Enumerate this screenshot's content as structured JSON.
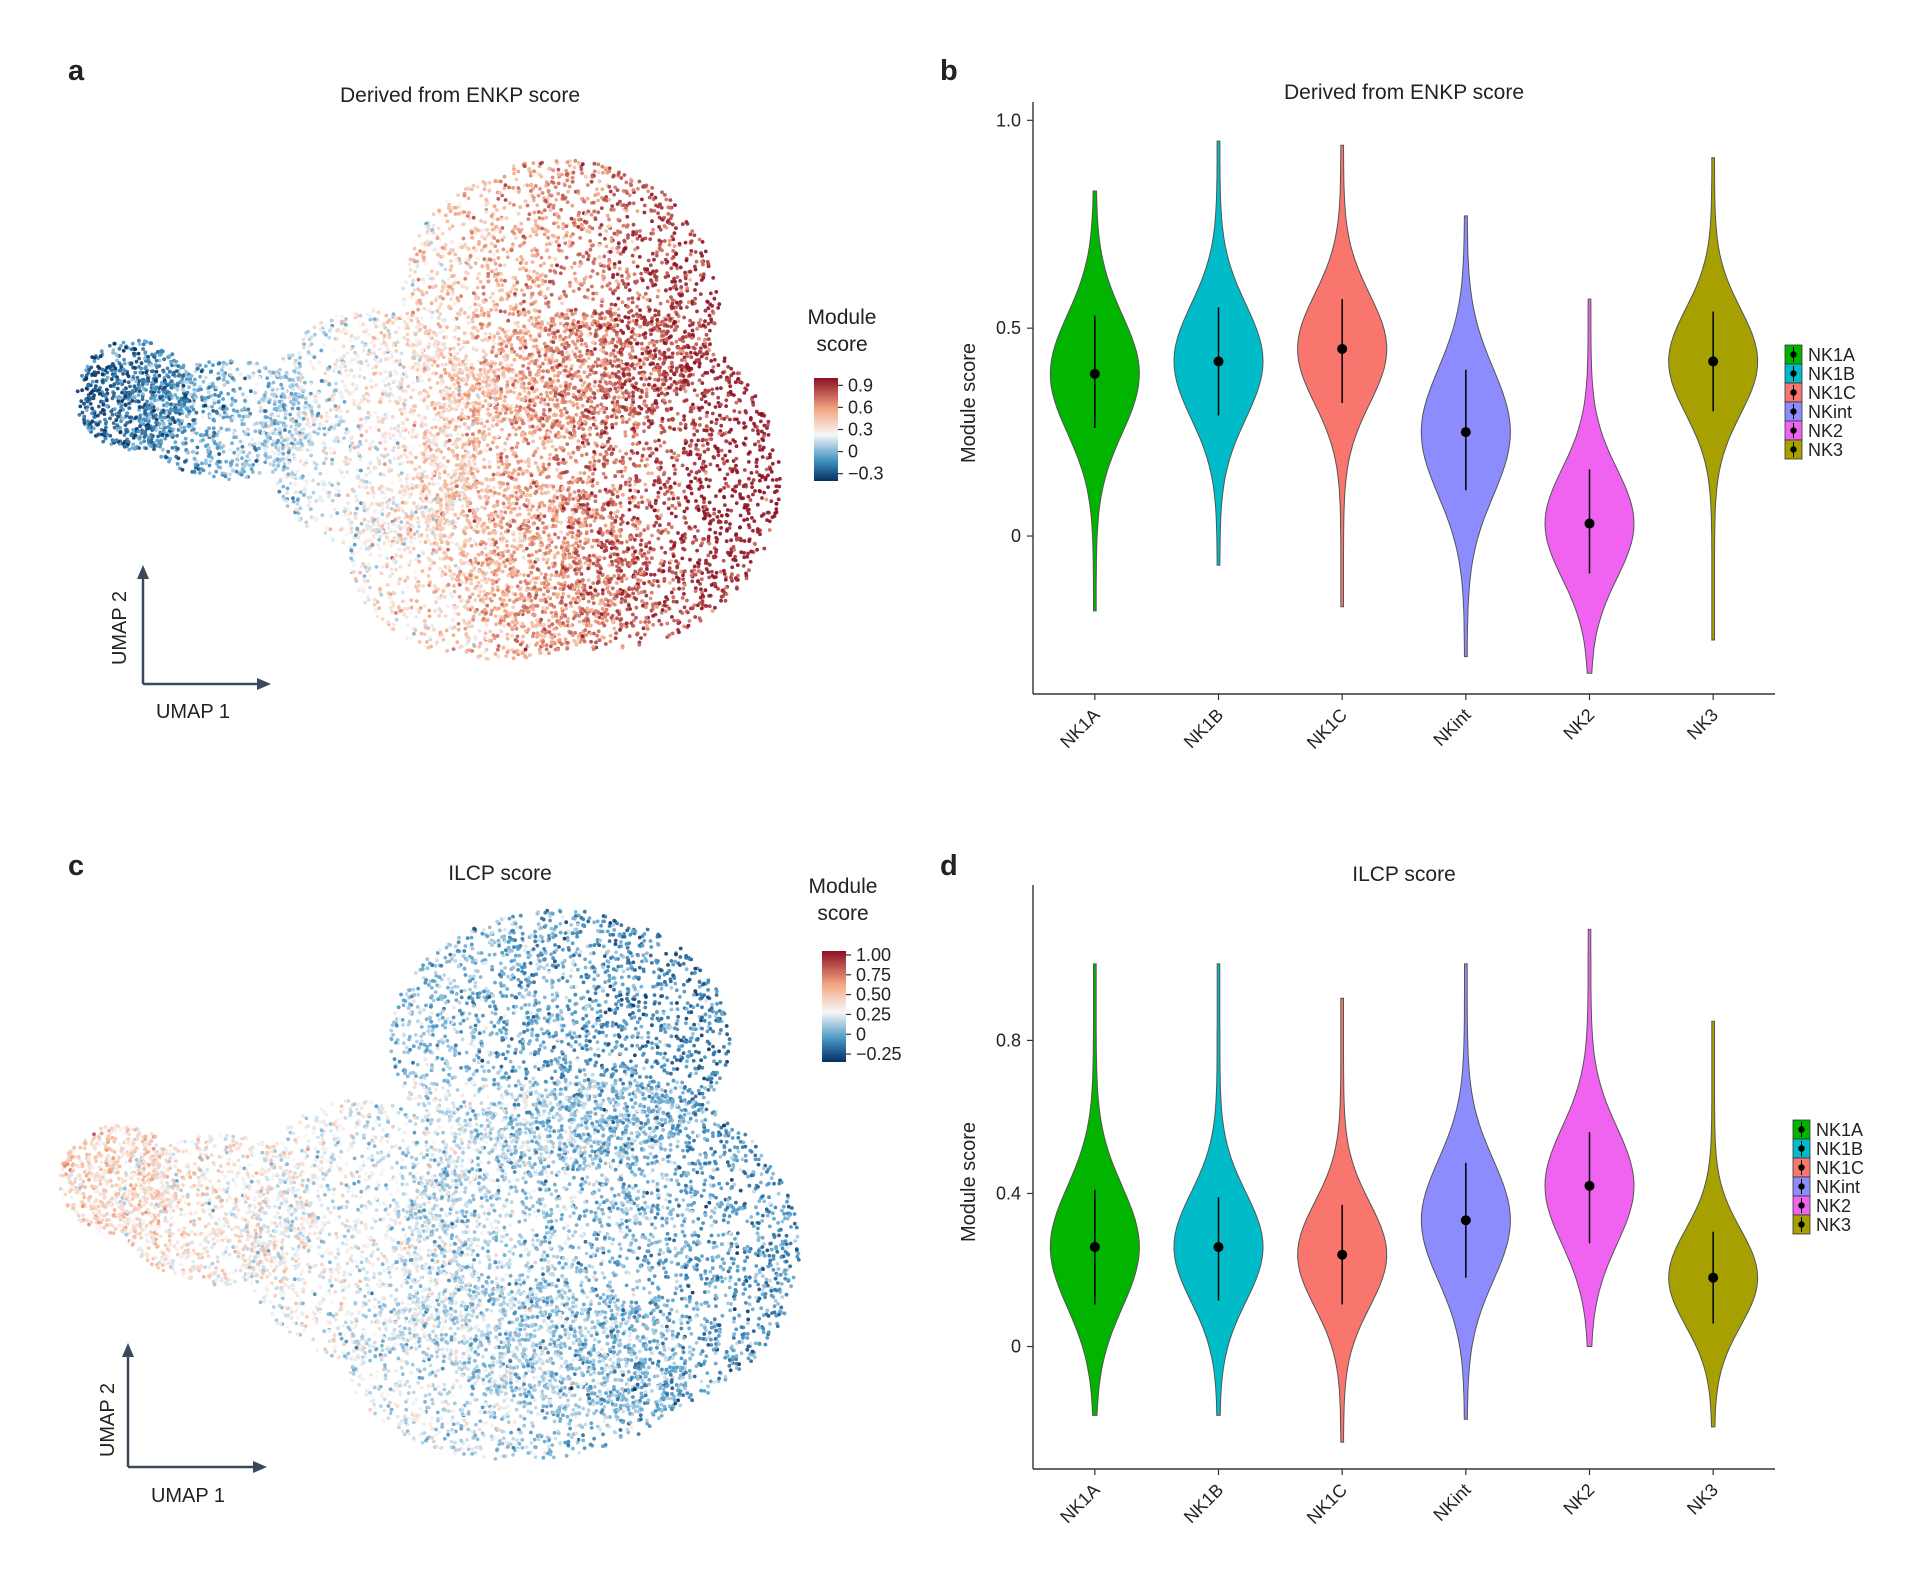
{
  "panels": {
    "a": {
      "letter": "a",
      "title": "Derived from ENKP score",
      "umap_x": "UMAP 1",
      "umap_y": "UMAP 2"
    },
    "b": {
      "letter": "b"
    },
    "c": {
      "letter": "c",
      "title": "ILCP score",
      "umap_x": "UMAP 1",
      "umap_y": "UMAP 2"
    },
    "d": {
      "letter": "d"
    }
  },
  "colorbar_a": {
    "title_line1": "Module",
    "title_line2": "score",
    "ticks": [
      {
        "value": 0.9,
        "label": "0.9"
      },
      {
        "value": 0.6,
        "label": "0.6"
      },
      {
        "value": 0.3,
        "label": "0.3"
      },
      {
        "value": 0,
        "label": "0"
      },
      {
        "value": -0.3,
        "label": "−0.3"
      }
    ],
    "range": [
      -0.4,
      1.0
    ]
  },
  "colorbar_c": {
    "title_line1": "Module",
    "title_line2": "score",
    "ticks": [
      {
        "value": 1.0,
        "label": "1.00"
      },
      {
        "value": 0.75,
        "label": "0.75"
      },
      {
        "value": 0.5,
        "label": "0.50"
      },
      {
        "value": 0.25,
        "label": "0.25"
      },
      {
        "value": 0,
        "label": "0"
      },
      {
        "value": -0.25,
        "label": "−0.25"
      }
    ],
    "range": [
      -0.35,
      1.05
    ]
  },
  "colors": {
    "NK1A": "#00b400",
    "NK1B": "#00bcc8",
    "NK1C": "#f8766d",
    "NKint": "#8c8cff",
    "NK2": "#f063f0",
    "NK3": "#a6a000",
    "diverging_low": "#2166ac",
    "diverging_mid": "#f7f7f7",
    "diverging_high": "#b2182b"
  },
  "chart_data": [
    {
      "panel": "b",
      "type": "violin",
      "title": "Derived from ENKP score",
      "xlabel": "",
      "ylabel": "Module score",
      "ylim": [
        -0.38,
        1.02
      ],
      "yticks": [
        0,
        0.5,
        1.0
      ],
      "ytick_labels": [
        "0",
        "0.5",
        "1.0"
      ],
      "categories": [
        "NK1A",
        "NK1B",
        "NK1C",
        "NKint",
        "NK2",
        "NK3"
      ],
      "series": [
        {
          "name": "NK1A",
          "min": -0.18,
          "max": 0.83,
          "center": 0.39,
          "low": 0.26,
          "high": 0.53
        },
        {
          "name": "NK1B",
          "min": -0.07,
          "max": 0.95,
          "center": 0.42,
          "low": 0.29,
          "high": 0.55
        },
        {
          "name": "NK1C",
          "min": -0.17,
          "max": 0.94,
          "center": 0.45,
          "low": 0.32,
          "high": 0.57
        },
        {
          "name": "NKint",
          "min": -0.29,
          "max": 0.77,
          "center": 0.25,
          "low": 0.11,
          "high": 0.4
        },
        {
          "name": "NK2",
          "min": -0.33,
          "max": 0.57,
          "center": 0.03,
          "low": -0.09,
          "high": 0.16
        },
        {
          "name": "NK3",
          "min": -0.25,
          "max": 0.91,
          "center": 0.42,
          "low": 0.3,
          "high": 0.54
        }
      ],
      "legend": {
        "position": "right",
        "entries": [
          "NK1A",
          "NK1B",
          "NK1C",
          "NKint",
          "NK2",
          "NK3"
        ]
      }
    },
    {
      "panel": "d",
      "type": "violin",
      "title": "ILCP score",
      "xlabel": "",
      "ylabel": "Module score",
      "ylim": [
        -0.32,
        1.18
      ],
      "yticks": [
        0,
        0.4,
        0.8
      ],
      "ytick_labels": [
        "0",
        "0.4",
        "0.8"
      ],
      "categories": [
        "NK1A",
        "NK1B",
        "NK1C",
        "NKint",
        "NK2",
        "NK3"
      ],
      "series": [
        {
          "name": "NK1A",
          "min": -0.18,
          "max": 1.0,
          "center": 0.26,
          "low": 0.11,
          "high": 0.41
        },
        {
          "name": "NK1B",
          "min": -0.18,
          "max": 1.0,
          "center": 0.26,
          "low": 0.12,
          "high": 0.39
        },
        {
          "name": "NK1C",
          "min": -0.25,
          "max": 0.91,
          "center": 0.24,
          "low": 0.11,
          "high": 0.37
        },
        {
          "name": "NKint",
          "min": -0.19,
          "max": 1.0,
          "center": 0.33,
          "low": 0.18,
          "high": 0.48
        },
        {
          "name": "NK2",
          "min": 0.0,
          "max": 1.09,
          "center": 0.42,
          "low": 0.27,
          "high": 0.56
        },
        {
          "name": "NK3",
          "min": -0.21,
          "max": 0.85,
          "center": 0.18,
          "low": 0.06,
          "high": 0.3
        }
      ],
      "legend": {
        "position": "right",
        "entries": [
          "NK1A",
          "NK1B",
          "NK1C",
          "NKint",
          "NK2",
          "NK3"
        ]
      }
    }
  ]
}
